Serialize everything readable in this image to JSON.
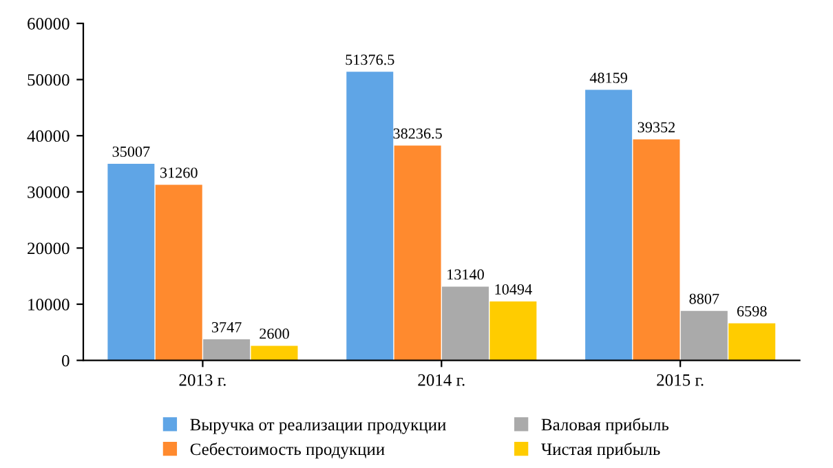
{
  "chart_data": {
    "type": "bar",
    "categories": [
      "2013 г.",
      "2014 г.",
      "2015 г."
    ],
    "series": [
      {
        "name": "Выручка от реализации продукции",
        "color": "#5fa5e6",
        "values": [
          35007,
          51376.5,
          48159
        ]
      },
      {
        "name": "Себестоимость продукции",
        "color": "#ff8a2e",
        "values": [
          31260,
          38236.5,
          39352
        ]
      },
      {
        "name": "Валовая прибыль",
        "color": "#aaaaaa",
        "values": [
          3747,
          13140,
          8807
        ]
      },
      {
        "name": "Чистая прибыль",
        "color": "#ffcc00",
        "values": [
          2600,
          10494,
          6598
        ]
      }
    ],
    "ylim": [
      0,
      60000
    ],
    "yticks": [
      0,
      10000,
      20000,
      30000,
      40000,
      50000,
      60000
    ],
    "data_labels": true,
    "grid": false,
    "legend": "bottom"
  }
}
